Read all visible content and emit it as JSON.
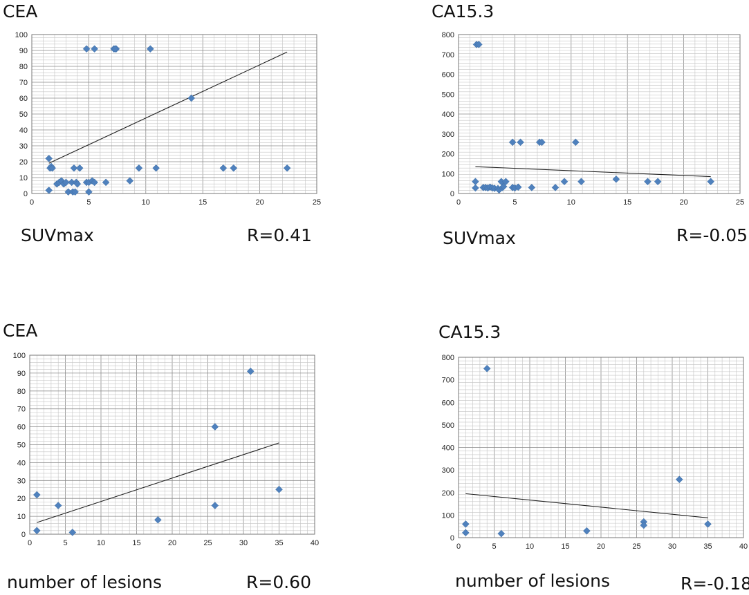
{
  "chart_data": [
    {
      "type": "scatter",
      "title": "CEA",
      "xlabel": "SUVmax",
      "annotation": "R=0.41",
      "xlim": [
        0,
        25
      ],
      "ylim": [
        0,
        100
      ],
      "xticks": [
        0,
        5,
        10,
        15,
        20,
        25
      ],
      "yticks": [
        0,
        10,
        20,
        30,
        40,
        50,
        60,
        70,
        80,
        90,
        100
      ],
      "grid": true,
      "marker_color": "#4f81bd",
      "series": [
        {
          "x": [
            1.5,
            1.6,
            1.7,
            1.8,
            1.5,
            2.2,
            2.4,
            2.6,
            2.8,
            3.0,
            3.2,
            3.5,
            3.6,
            3.7,
            3.8,
            3.9,
            4.0,
            4.2,
            4.8,
            5.0,
            5.0,
            5.3,
            5.5,
            6.5,
            7.2,
            7.4,
            8.6,
            9.4,
            10.4,
            10.9,
            14.0,
            16.8,
            17.7,
            22.4,
            4.8,
            5.5,
            7.3
          ],
          "y": [
            22,
            16,
            17,
            16,
            2,
            6,
            7,
            8,
            6,
            7,
            1,
            7,
            1,
            16,
            1,
            7,
            6,
            16,
            7,
            1,
            7,
            8,
            7,
            7,
            91,
            91,
            8,
            16,
            91,
            16,
            60,
            16,
            16,
            16,
            91,
            91,
            91
          ]
        }
      ],
      "trendline": {
        "x": [
          1.5,
          22.4
        ],
        "y": [
          19,
          89
        ]
      }
    },
    {
      "type": "scatter",
      "title": "CA15.3",
      "xlabel": "SUVmax",
      "annotation": "R=-0.05",
      "xlim": [
        0,
        25
      ],
      "ylim": [
        0,
        800
      ],
      "xticks": [
        0,
        5,
        10,
        15,
        20,
        25
      ],
      "yticks": [
        0,
        100,
        200,
        300,
        400,
        500,
        600,
        700,
        800
      ],
      "grid": true,
      "marker_color": "#4f81bd",
      "series": [
        {
          "x": [
            1.5,
            1.6,
            1.8,
            1.5,
            2.2,
            2.4,
            2.6,
            2.8,
            3.0,
            3.2,
            3.5,
            3.6,
            3.8,
            3.9,
            4.0,
            4.2,
            4.8,
            5.0,
            5.3,
            6.5,
            7.2,
            7.4,
            8.6,
            9.4,
            10.4,
            10.9,
            14.0,
            16.8,
            17.7,
            22.4,
            5.5,
            4.8
          ],
          "y": [
            60,
            750,
            750,
            28,
            30,
            30,
            28,
            32,
            28,
            26,
            25,
            18,
            60,
            30,
            35,
            60,
            30,
            28,
            32,
            30,
            258,
            258,
            30,
            60,
            258,
            60,
            72,
            60,
            60,
            60,
            258,
            258
          ]
        }
      ],
      "trendline": {
        "x": [
          1.5,
          22.4
        ],
        "y": [
          135,
          85
        ]
      }
    },
    {
      "type": "scatter",
      "title": "CEA",
      "xlabel": "number of lesions",
      "annotation": "R=0.60",
      "xlim": [
        0,
        40
      ],
      "ylim": [
        0,
        100
      ],
      "xticks": [
        0,
        5,
        10,
        15,
        20,
        25,
        30,
        35,
        40
      ],
      "yticks": [
        0,
        10,
        20,
        30,
        40,
        50,
        60,
        70,
        80,
        90,
        100
      ],
      "grid": true,
      "marker_color": "#4f81bd",
      "series": [
        {
          "x": [
            1,
            1,
            4,
            6,
            18,
            26,
            26,
            31,
            35
          ],
          "y": [
            22,
            2,
            16,
            1,
            8,
            60,
            16,
            91,
            25
          ]
        }
      ],
      "trendline": {
        "x": [
          1,
          35
        ],
        "y": [
          6.5,
          51
        ]
      }
    },
    {
      "type": "scatter",
      "title": "CA15.3",
      "xlabel": "number of lesions",
      "annotation": "R=-0.18",
      "xlim": [
        0,
        40
      ],
      "ylim": [
        0,
        800
      ],
      "xticks": [
        0,
        5,
        10,
        15,
        20,
        25,
        30,
        35,
        40
      ],
      "yticks": [
        0,
        100,
        200,
        300,
        400,
        500,
        600,
        700,
        800
      ],
      "grid": true,
      "marker_color": "#4f81bd",
      "series": [
        {
          "x": [
            1,
            1,
            4,
            6,
            18,
            26,
            26,
            31,
            35
          ],
          "y": [
            60,
            22,
            750,
            18,
            30,
            70,
            55,
            258,
            60
          ]
        }
      ],
      "trendline": {
        "x": [
          1,
          35
        ],
        "y": [
          195,
          88
        ]
      }
    }
  ]
}
